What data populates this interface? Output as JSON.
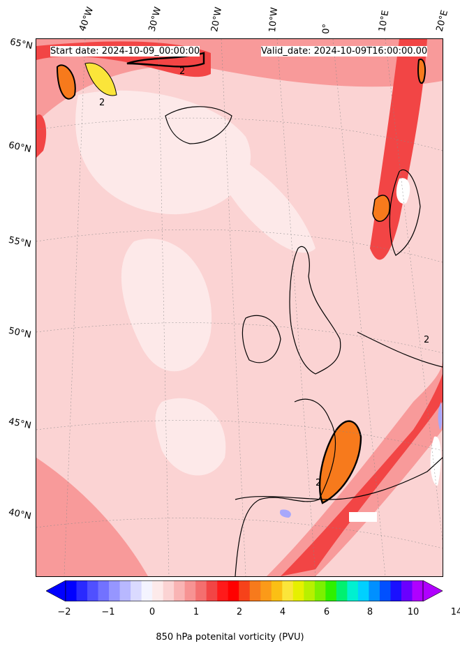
{
  "header": {
    "start_date": "Start date: 2024-10-09_00:00:00",
    "valid_date": "Valid_date: 2024-10-09T16:00:00.00"
  },
  "map": {
    "longitude_labels": [
      "40°W",
      "30°W",
      "20°W",
      "10°W",
      "0°",
      "10°E",
      "20°E"
    ],
    "latitude_labels": [
      "65°N",
      "60°N",
      "55°N",
      "50°N",
      "45°N",
      "40°N"
    ],
    "contour_label": "2",
    "field": "850 hPa potential vorticity",
    "colors": {
      "ocean_base": "#fbd3d3",
      "light": "#fde9e9",
      "medium": "#f89a9a",
      "strong": "#f24545",
      "very_strong": "#ff1a1a",
      "orange": "#f77a1c",
      "yellow": "#fbe53a",
      "land_white": "#ffffff",
      "negative": "#a8a8fb",
      "coast": "#000000"
    }
  },
  "colorbar": {
    "label": "850 hPa potenital vorticity (PVU)",
    "tick_labels": [
      "−2",
      "−1",
      "0",
      "1",
      "2",
      "4",
      "6",
      "8",
      "10",
      "14"
    ],
    "colors": [
      "#0000ff",
      "#2a2aff",
      "#5050ff",
      "#7272ff",
      "#9696ff",
      "#b8b8ff",
      "#dadaff",
      "#f4f4ff",
      "#fdeaea",
      "#fbd3d3",
      "#f9b4b4",
      "#f79393",
      "#f46f6f",
      "#f24545",
      "#ff1a1a",
      "#ff0000",
      "#f6421a",
      "#f77a1c",
      "#fb9a18",
      "#fbbf14",
      "#fbe53a",
      "#e6f000",
      "#b7f000",
      "#7cf000",
      "#2ef000",
      "#00f070",
      "#00f0d0",
      "#00d0ff",
      "#0090ff",
      "#0050ff",
      "#1a10ff",
      "#6a00ff",
      "#b000ff"
    ],
    "extend_min_color": "#0000ff",
    "extend_max_color": "#b000ff"
  }
}
